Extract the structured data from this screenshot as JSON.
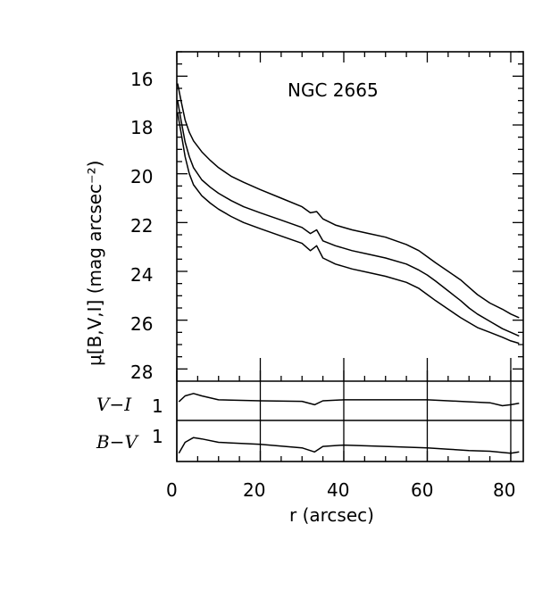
{
  "chart_data": [
    {
      "type": "line",
      "title": "NGC 2665",
      "ylabel": "μ[B,V,I] (mag arcsec⁻²)",
      "xlim": [
        0,
        83
      ],
      "ylim": [
        28.5,
        15
      ],
      "y_inverted": true,
      "y_ticks": [
        "16",
        "18",
        "20",
        "22",
        "24",
        "26",
        "28"
      ],
      "series": [
        {
          "x": [
            0.2,
            1,
            2,
            3,
            4,
            6,
            8,
            10,
            13,
            16,
            20,
            25,
            30,
            32,
            33.5,
            35,
            38,
            42,
            46,
            50,
            55,
            58,
            60,
            62,
            65,
            68,
            70,
            72,
            75,
            78,
            80,
            82
          ],
          "y": [
            16.3,
            17.0,
            17.8,
            18.3,
            18.65,
            19.1,
            19.45,
            19.75,
            20.1,
            20.35,
            20.65,
            21.0,
            21.35,
            21.6,
            21.55,
            21.85,
            22.1,
            22.3,
            22.45,
            22.6,
            22.9,
            23.15,
            23.4,
            23.65,
            24.0,
            24.35,
            24.65,
            24.95,
            25.3,
            25.55,
            25.75,
            25.9
          ]
        },
        {
          "x": [
            0.2,
            1,
            2,
            3,
            4,
            6,
            8,
            10,
            13,
            16,
            20,
            25,
            30,
            32,
            33.5,
            35,
            38,
            42,
            46,
            50,
            55,
            58,
            60,
            62,
            65,
            68,
            70,
            72,
            75,
            78,
            80,
            82
          ],
          "y": [
            17.0,
            17.8,
            18.7,
            19.3,
            19.75,
            20.25,
            20.55,
            20.8,
            21.1,
            21.35,
            21.6,
            21.9,
            22.2,
            22.45,
            22.3,
            22.75,
            22.95,
            23.15,
            23.3,
            23.45,
            23.7,
            23.95,
            24.15,
            24.4,
            24.8,
            25.2,
            25.5,
            25.75,
            26.05,
            26.35,
            26.5,
            26.65
          ]
        },
        {
          "x": [
            0.2,
            1,
            2,
            3,
            4,
            6,
            8,
            10,
            13,
            16,
            20,
            25,
            30,
            32,
            33.5,
            35,
            38,
            42,
            46,
            50,
            55,
            58,
            60,
            62,
            65,
            68,
            70,
            72,
            75,
            78,
            80,
            82
          ],
          "y": [
            17.5,
            18.3,
            19.3,
            20.0,
            20.45,
            20.9,
            21.2,
            21.45,
            21.75,
            22.0,
            22.25,
            22.55,
            22.85,
            23.15,
            22.95,
            23.45,
            23.7,
            23.9,
            24.05,
            24.2,
            24.45,
            24.7,
            24.95,
            25.2,
            25.55,
            25.9,
            26.1,
            26.3,
            26.5,
            26.7,
            26.85,
            26.95
          ]
        }
      ]
    },
    {
      "type": "line",
      "ylabel": "V−I",
      "y_ticks": [
        "1"
      ],
      "ylim": [
        1.6,
        0.8
      ],
      "y_inverted": true,
      "series": [
        {
          "x": [
            0.5,
            2,
            4,
            6,
            10,
            20,
            30,
            33,
            35,
            40,
            50,
            60,
            65,
            70,
            75,
            78,
            80,
            82
          ],
          "y": [
            1.22,
            1.1,
            1.05,
            1.1,
            1.18,
            1.2,
            1.21,
            1.28,
            1.2,
            1.18,
            1.18,
            1.18,
            1.2,
            1.22,
            1.24,
            1.3,
            1.28,
            1.25
          ]
        }
      ]
    },
    {
      "type": "line",
      "ylabel": "B−V",
      "y_ticks": [
        "1"
      ],
      "ylim": [
        1.4,
        0.8
      ],
      "y_inverted": true,
      "series": [
        {
          "x": [
            0.5,
            2,
            4,
            6,
            10,
            20,
            30,
            33,
            35,
            40,
            50,
            60,
            65,
            70,
            75,
            80,
            82
          ],
          "y": [
            1.28,
            1.12,
            1.05,
            1.07,
            1.12,
            1.15,
            1.2,
            1.26,
            1.18,
            1.16,
            1.18,
            1.2,
            1.22,
            1.24,
            1.25,
            1.28,
            1.26
          ]
        }
      ]
    },
    {
      "type": "axis",
      "xlabel": "r (arcsec)",
      "x_ticks": [
        "0",
        "20",
        "40",
        "60",
        "80"
      ],
      "xlim": [
        0,
        83
      ]
    }
  ]
}
